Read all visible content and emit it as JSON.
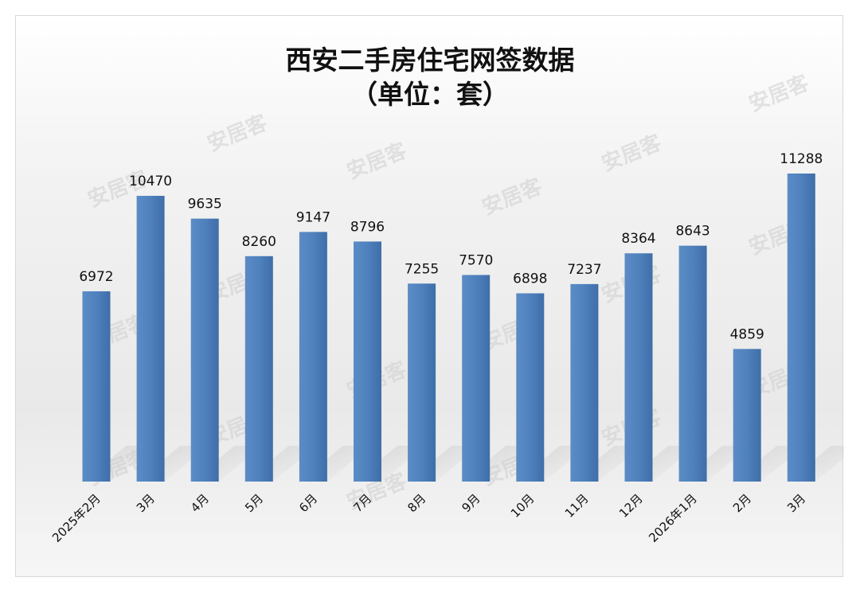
{
  "chart_data": {
    "type": "bar",
    "title": "西安二手房住宅网签数据",
    "subtitle": "（单位：套）",
    "categories": [
      "2025年2月",
      "3月",
      "4月",
      "5月",
      "6月",
      "7月",
      "8月",
      "9月",
      "10月",
      "11月",
      "12月",
      "2026年1月",
      "2月",
      "3月"
    ],
    "values": [
      6972,
      10470,
      9635,
      8260,
      9147,
      8796,
      7255,
      7570,
      6898,
      7237,
      8364,
      8643,
      4859,
      11288
    ],
    "xlabel": "",
    "ylabel": "",
    "ylim": [
      0,
      11288
    ],
    "grid": false,
    "legend": "none",
    "bar_color": "#4f81bd",
    "watermark": "安居客"
  }
}
